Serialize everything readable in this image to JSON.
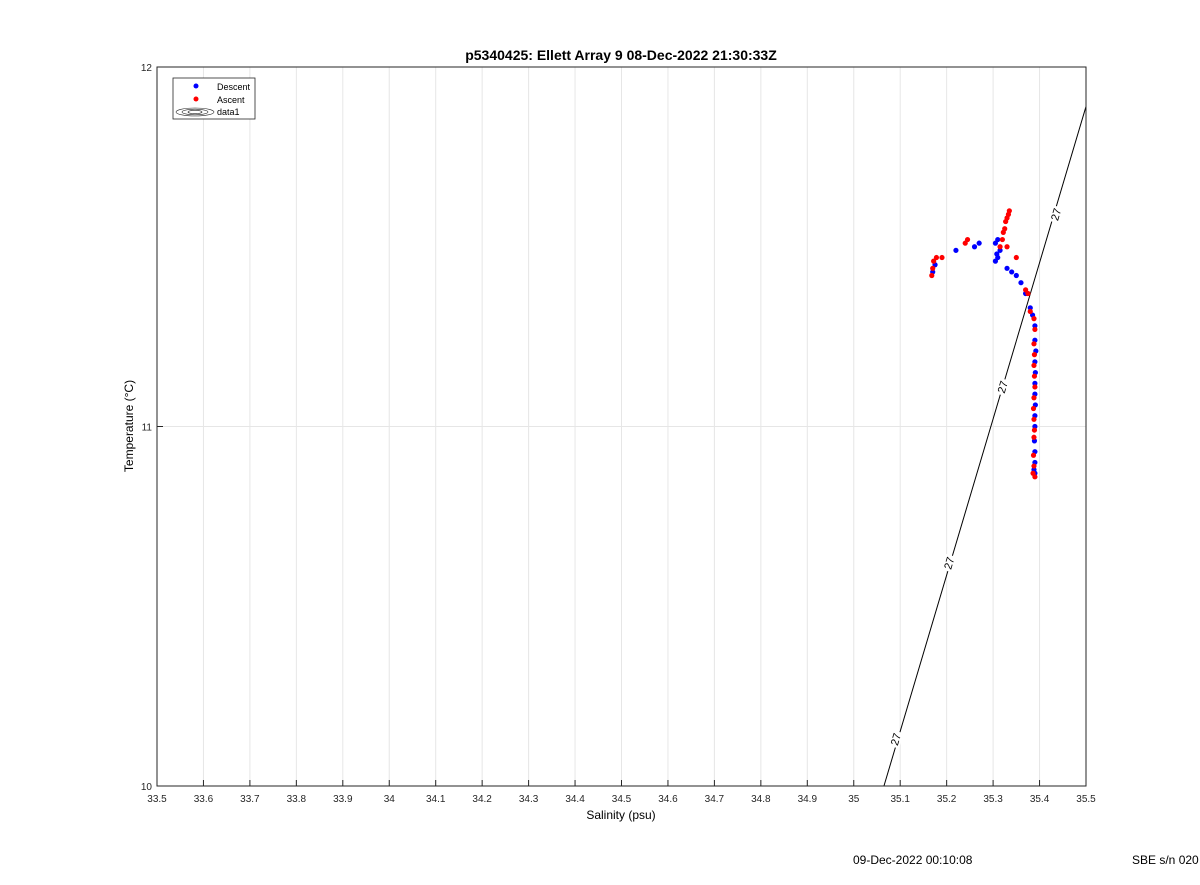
{
  "chart_data": {
    "type": "scatter",
    "title": "p5340425: Ellett Array 9 08-Dec-2022 21:30:33Z",
    "xlabel": "Salinity (psu)",
    "ylabel": "Temperature (°C)",
    "xlim": [
      33.5,
      35.5
    ],
    "ylim": [
      10,
      12
    ],
    "xticks": [
      "33.5",
      "33.6",
      "33.7",
      "33.8",
      "33.9",
      "34",
      "34.1",
      "34.2",
      "34.3",
      "34.4",
      "34.5",
      "34.6",
      "34.7",
      "34.8",
      "34.9",
      "35",
      "35.1",
      "35.2",
      "35.3",
      "35.4",
      "35.5"
    ],
    "yticks": [
      "10",
      "11",
      "12"
    ],
    "grid": true,
    "legend_position": "top-left",
    "series": [
      {
        "name": "Descent",
        "color": "#0000ff",
        "points": [
          [
            35.17,
            11.43
          ],
          [
            35.175,
            11.45
          ],
          [
            35.22,
            11.49
          ],
          [
            35.26,
            11.5
          ],
          [
            35.27,
            11.51
          ],
          [
            35.305,
            11.51
          ],
          [
            35.31,
            11.52
          ],
          [
            35.308,
            11.48
          ],
          [
            35.305,
            11.46
          ],
          [
            35.31,
            11.47
          ],
          [
            35.315,
            11.49
          ],
          [
            35.33,
            11.44
          ],
          [
            35.34,
            11.43
          ],
          [
            35.35,
            11.42
          ],
          [
            35.36,
            11.4
          ],
          [
            35.37,
            11.37
          ],
          [
            35.38,
            11.33
          ],
          [
            35.385,
            11.31
          ],
          [
            35.39,
            11.28
          ],
          [
            35.39,
            11.24
          ],
          [
            35.392,
            11.21
          ],
          [
            35.39,
            11.18
          ],
          [
            35.391,
            11.15
          ],
          [
            35.39,
            11.12
          ],
          [
            35.39,
            11.09
          ],
          [
            35.391,
            11.06
          ],
          [
            35.39,
            11.03
          ],
          [
            35.39,
            11.0
          ],
          [
            35.389,
            10.96
          ],
          [
            35.39,
            10.93
          ],
          [
            35.39,
            10.9
          ],
          [
            35.388,
            10.88
          ],
          [
            35.39,
            10.87
          ]
        ]
      },
      {
        "name": "Ascent",
        "color": "#ff0000",
        "points": [
          [
            35.168,
            11.42
          ],
          [
            35.17,
            11.44
          ],
          [
            35.172,
            11.46
          ],
          [
            35.178,
            11.47
          ],
          [
            35.19,
            11.47
          ],
          [
            35.24,
            11.51
          ],
          [
            35.245,
            11.52
          ],
          [
            35.315,
            11.5
          ],
          [
            35.32,
            11.52
          ],
          [
            35.322,
            11.54
          ],
          [
            35.325,
            11.55
          ],
          [
            35.327,
            11.57
          ],
          [
            35.33,
            11.58
          ],
          [
            35.333,
            11.59
          ],
          [
            35.335,
            11.6
          ],
          [
            35.33,
            11.5
          ],
          [
            35.35,
            11.47
          ],
          [
            35.37,
            11.38
          ],
          [
            35.375,
            11.37
          ],
          [
            35.38,
            11.32
          ],
          [
            35.388,
            11.3
          ],
          [
            35.39,
            11.27
          ],
          [
            35.388,
            11.23
          ],
          [
            35.389,
            11.2
          ],
          [
            35.388,
            11.17
          ],
          [
            35.389,
            11.14
          ],
          [
            35.39,
            11.11
          ],
          [
            35.388,
            11.08
          ],
          [
            35.387,
            11.05
          ],
          [
            35.388,
            11.02
          ],
          [
            35.389,
            10.99
          ],
          [
            35.388,
            10.97
          ],
          [
            35.387,
            10.92
          ],
          [
            35.388,
            10.89
          ],
          [
            35.386,
            10.87
          ],
          [
            35.39,
            10.86
          ]
        ]
      }
    ],
    "contour": {
      "name": "data1",
      "level_label": "27",
      "line_points": [
        [
          35.065,
          10.0
        ],
        [
          35.5,
          11.89
        ]
      ],
      "label_positions": [
        [
          35.09,
          10.13
        ],
        [
          35.205,
          10.62
        ],
        [
          35.32,
          11.11
        ],
        [
          35.435,
          11.59
        ]
      ]
    }
  },
  "footer": {
    "timestamp": "09-Dec-2022 00:10:08",
    "serial": "SBE s/n 020"
  }
}
